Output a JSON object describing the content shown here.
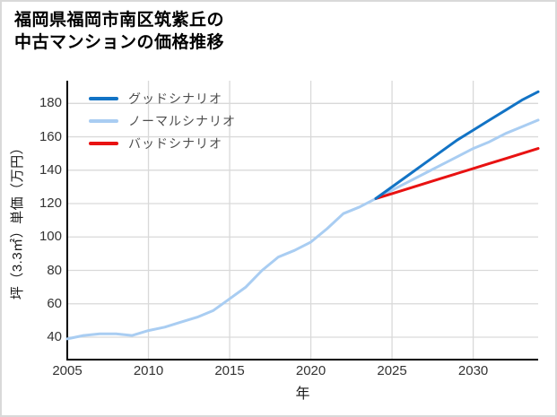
{
  "card": {
    "title_line1": "福岡県福岡市南区筑紫丘の",
    "title_line2": "中古マンションの価格推移"
  },
  "chart_data": {
    "type": "line",
    "title": "福岡県福岡市南区筑紫丘の中古マンションの価格推移",
    "xlabel": "年",
    "ylabel": "坪（3.3㎡）単価（万円）",
    "x_ticks": [
      2005,
      2010,
      2015,
      2020,
      2025,
      2030
    ],
    "y_ticks": [
      40,
      60,
      80,
      100,
      120,
      140,
      160,
      180
    ],
    "xlim": [
      2005,
      2034
    ],
    "ylim": [
      27,
      193
    ],
    "grid": true,
    "legend_position": "upper left",
    "series": [
      {
        "name": "グッドシナリオ",
        "color": "#1273c5",
        "x": [
          2024,
          2025,
          2026,
          2027,
          2028,
          2029,
          2030,
          2031,
          2032,
          2033,
          2034
        ],
        "values": [
          123,
          130,
          137,
          144,
          151,
          158,
          164,
          170,
          176,
          182,
          187
        ]
      },
      {
        "name": "ノーマルシナリオ",
        "color": "#a9cdf2",
        "x": [
          2005,
          2006,
          2007,
          2008,
          2009,
          2010,
          2011,
          2012,
          2013,
          2014,
          2015,
          2016,
          2017,
          2018,
          2019,
          2020,
          2021,
          2022,
          2023,
          2024,
          2025,
          2026,
          2027,
          2028,
          2029,
          2030,
          2031,
          2032,
          2033,
          2034
        ],
        "values": [
          39,
          41,
          42,
          42,
          41,
          44,
          46,
          49,
          52,
          56,
          63,
          70,
          80,
          88,
          92,
          97,
          105,
          114,
          118,
          123,
          128,
          133,
          138,
          143,
          148,
          153,
          157,
          162,
          166,
          170
        ]
      },
      {
        "name": "バッドシナリオ",
        "color": "#e81212",
        "x": [
          2024,
          2025,
          2026,
          2027,
          2028,
          2029,
          2030,
          2031,
          2032,
          2033,
          2034
        ],
        "values": [
          123,
          126,
          129,
          132,
          135,
          138,
          141,
          144,
          147,
          150,
          153
        ]
      }
    ],
    "draw_order": [
      1,
      2,
      0
    ]
  },
  "colors": {
    "grid": "#d9d9d9",
    "axis": "#000000",
    "tick_text": "#333333",
    "legend_text": "#4d4d4d",
    "background": "#ffffff"
  }
}
